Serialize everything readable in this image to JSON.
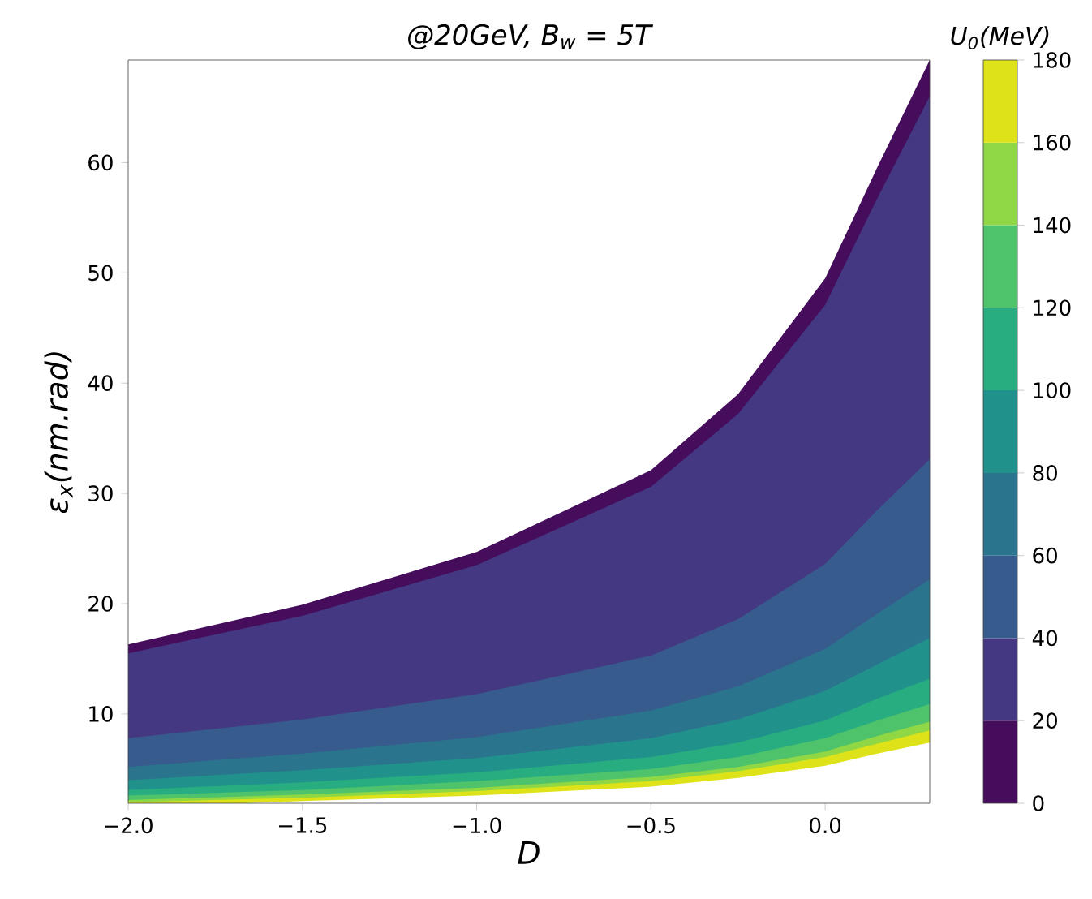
{
  "chart_data": {
    "type": "area",
    "title": "@20GeV, B$_{w}$ = 5T",
    "xlabel": "D",
    "ylabel": "ε$_{x}$(nm.rad)",
    "clabel": "U$_{0}$(MeV)",
    "xlim": [
      -2.0,
      0.3
    ],
    "ylim": [
      1.9,
      69.3
    ],
    "xticks": [
      {
        "value": -2.0,
        "label": "−2.0"
      },
      {
        "value": -1.5,
        "label": "−1.5"
      },
      {
        "value": -1.0,
        "label": "−1.0"
      },
      {
        "value": -0.5,
        "label": "−0.5"
      },
      {
        "value": 0.0,
        "label": "0.0"
      }
    ],
    "yticks": [
      10,
      20,
      30,
      40,
      50,
      60
    ],
    "clim": [
      0,
      180
    ],
    "cticks": [
      0,
      20,
      40,
      60,
      80,
      100,
      120,
      140,
      160,
      180
    ],
    "x": [
      -2.0,
      -1.5,
      -1.0,
      -0.5,
      -0.25,
      0.0,
      0.15,
      0.3
    ],
    "series": [
      {
        "color": "#450d5b",
        "values": [
          16.3,
          19.9,
          24.7,
          32.1,
          39.0,
          49.5,
          59.6,
          69.3
        ]
      },
      {
        "color": "#453882",
        "values": [
          15.5,
          18.9,
          23.5,
          30.6,
          37.2,
          47.1,
          56.8,
          66.0
        ]
      },
      {
        "color": "#375b8d",
        "values": [
          7.8,
          9.5,
          11.8,
          15.3,
          18.6,
          23.6,
          28.5,
          33.1
        ]
      },
      {
        "color": "#2b748e",
        "values": [
          5.2,
          6.4,
          7.9,
          10.3,
          12.5,
          15.9,
          19.1,
          22.2
        ]
      },
      {
        "color": "#21918c",
        "values": [
          4.0,
          4.9,
          6.0,
          7.8,
          9.5,
          12.1,
          14.5,
          16.9
        ]
      },
      {
        "color": "#28ad80",
        "values": [
          3.1,
          3.8,
          4.7,
          6.1,
          7.4,
          9.4,
          11.4,
          13.2
        ]
      },
      {
        "color": "#4ec36b",
        "values": [
          2.6,
          3.1,
          3.9,
          5.0,
          6.1,
          7.8,
          9.4,
          10.9
        ]
      },
      {
        "color": "#8fd744",
        "values": [
          2.2,
          2.7,
          3.3,
          4.3,
          5.2,
          6.6,
          8.0,
          9.3
        ]
      },
      {
        "color": "#dde318",
        "values": [
          2.0,
          2.4,
          3.0,
          3.9,
          4.8,
          6.1,
          7.3,
          8.5
        ]
      },
      {
        "color": "#ffffff",
        "x": [
          -1.67,
          -1.5,
          -1.0,
          -0.5,
          -0.25,
          0.0,
          0.15,
          0.3
        ],
        "values": [
          1.9,
          2.1,
          2.6,
          3.4,
          4.2,
          5.3,
          6.4,
          7.4
        ]
      }
    ]
  }
}
